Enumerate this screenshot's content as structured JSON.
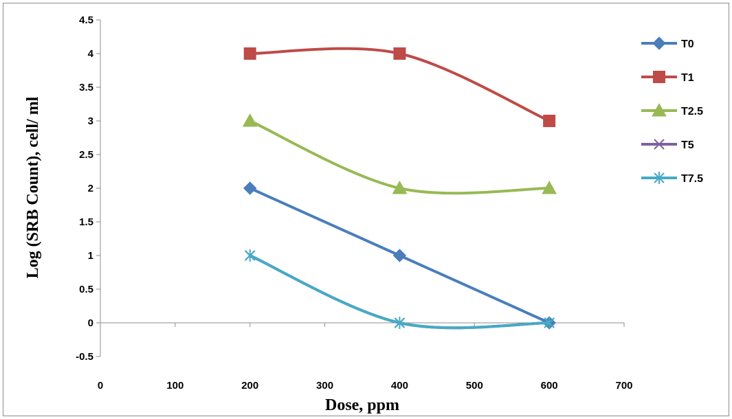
{
  "chart_data": {
    "type": "line",
    "title": "",
    "xlabel": "Dose, ppm",
    "ylabel": "Log (SRB Count), cell/ ml",
    "xlim": [
      0,
      700
    ],
    "ylim": [
      -0.5,
      4.5
    ],
    "x_ticks": [
      0,
      100,
      200,
      300,
      400,
      500,
      600,
      700
    ],
    "y_ticks": [
      -0.5,
      0,
      0.5,
      1,
      1.5,
      2,
      2.5,
      3,
      3.5,
      4,
      4.5
    ],
    "grid": false,
    "legend_position": "right",
    "series": [
      {
        "name": "T0",
        "x": [
          200,
          400,
          600
        ],
        "values": [
          2,
          1,
          0
        ],
        "color": "#4a7ebb",
        "marker": "diamond",
        "smooth": false
      },
      {
        "name": "T1",
        "x": [
          200,
          400,
          600
        ],
        "values": [
          4,
          4,
          3
        ],
        "color": "#be4b48",
        "marker": "square",
        "smooth": true
      },
      {
        "name": "T2.5",
        "x": [
          200,
          400,
          600
        ],
        "values": [
          3,
          2,
          2
        ],
        "color": "#98b954",
        "marker": "triangle",
        "smooth": true
      },
      {
        "name": "T5",
        "x": [
          200,
          400,
          600
        ],
        "values": [
          1,
          0,
          0
        ],
        "color": "#7d60a0",
        "marker": "x",
        "smooth": true
      },
      {
        "name": "T7.5",
        "x": [
          200,
          400,
          600
        ],
        "values": [
          1,
          0,
          0
        ],
        "color": "#46aac5",
        "marker": "star",
        "smooth": true
      }
    ]
  }
}
